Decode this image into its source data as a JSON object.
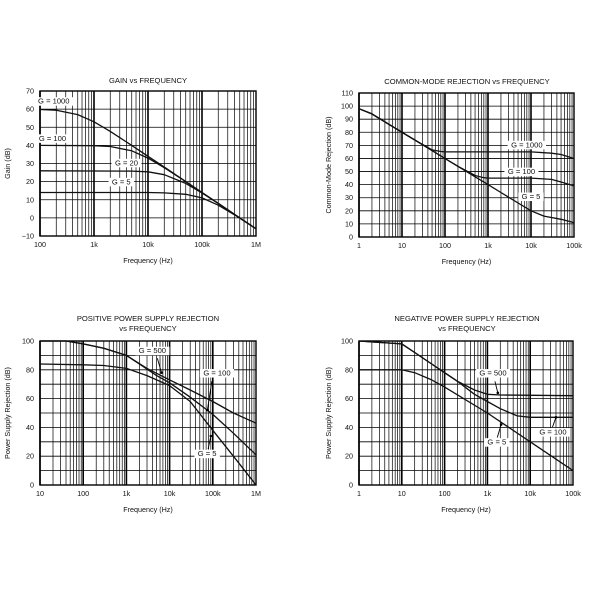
{
  "chart_data": [
    {
      "type": "line",
      "title": [
        "GAIN vs FREQUENCY"
      ],
      "xlabel": "Frequency (Hz)",
      "ylabel": "Gain (dB)",
      "xscale": "log",
      "xlim": [
        100,
        1000000
      ],
      "ylim": [
        -10,
        70
      ],
      "ystep": 10,
      "xticks": [
        100,
        1000,
        10000,
        100000,
        1000000
      ],
      "xtick_labels": [
        "100",
        "1k",
        "10k",
        "100k",
        "1M"
      ],
      "yticks": [
        -10,
        0,
        10,
        20,
        30,
        40,
        50,
        60,
        70
      ],
      "ytick_labels": [
        "−10",
        "0",
        "10",
        "20",
        "30",
        "40",
        "50",
        "60",
        "70"
      ],
      "grid": true,
      "series": [
        {
          "name": "G = 1000",
          "x": [
            100,
            200,
            500,
            1000,
            2000,
            5000,
            10000,
            20000,
            50000,
            100000,
            200000,
            500000,
            1000000
          ],
          "y": [
            59.8,
            59.4,
            57.0,
            53.0,
            47.7,
            40.0,
            34.0,
            28.0,
            20.0,
            14.0,
            8.0,
            0.0,
            -6.0
          ]
        },
        {
          "name": "G = 100",
          "x": [
            100,
            1000,
            2000,
            5000,
            10000,
            20000,
            50000,
            100000,
            200000,
            500000,
            1000000
          ],
          "y": [
            40,
            39.8,
            39.4,
            37.0,
            33.0,
            27.7,
            20.0,
            14.0,
            8.0,
            0.0,
            -6.0
          ]
        },
        {
          "name": "G = 20",
          "x": [
            100,
            5000,
            10000,
            20000,
            50000,
            100000,
            200000,
            500000,
            1000000
          ],
          "y": [
            26,
            25.8,
            25.4,
            23.8,
            19.0,
            13.7,
            8.0,
            0.0,
            -6.0
          ]
        },
        {
          "name": "G = 5",
          "x": [
            100,
            10000,
            20000,
            50000,
            100000,
            200000,
            500000,
            1000000
          ],
          "y": [
            14,
            14,
            13.8,
            13.0,
            11.0,
            7.0,
            0.0,
            -6.0
          ]
        }
      ]
    },
    {
      "type": "line",
      "title": [
        "COMMON-MODE REJECTION vs FREQUENCY"
      ],
      "xlabel": "Frequency (Hz)",
      "ylabel": "Common-Mode Rejection (dB)",
      "xscale": "log",
      "xlim": [
        1,
        100000
      ],
      "ylim": [
        0,
        110
      ],
      "ystep": 10,
      "xticks": [
        1,
        10,
        100,
        1000,
        10000,
        100000
      ],
      "xtick_labels": [
        "1",
        "10",
        "100",
        "1k",
        "10k",
        "100k"
      ],
      "yticks": [
        0,
        10,
        20,
        30,
        40,
        50,
        60,
        70,
        80,
        90,
        100,
        110
      ],
      "ytick_labels": [
        "0",
        "10",
        "20",
        "30",
        "40",
        "50",
        "60",
        "70",
        "80",
        "90",
        "100",
        "110"
      ],
      "grid": true,
      "series": [
        {
          "name": "G = 1000",
          "x": [
            1,
            2,
            5,
            10,
            20,
            50,
            80,
            100,
            1000,
            10000,
            30000,
            50000,
            100000
          ],
          "y": [
            98,
            94,
            86,
            80,
            74,
            66.5,
            65.3,
            65,
            65,
            65,
            64,
            63,
            60
          ]
        },
        {
          "name": "G = 100",
          "x": [
            1,
            2,
            5,
            10,
            20,
            50,
            100,
            200,
            500,
            800,
            1000,
            10000,
            30000,
            50000,
            100000
          ],
          "y": [
            98,
            94,
            86,
            80,
            74,
            66,
            60,
            54,
            47,
            45.3,
            45,
            45,
            44,
            42,
            39
          ]
        },
        {
          "name": "G = 5",
          "x": [
            1,
            2,
            5,
            10,
            20,
            50,
            100,
            200,
            500,
            1000,
            2000,
            5000,
            10000,
            20000,
            50000,
            100000
          ],
          "y": [
            98,
            94,
            86,
            80,
            74,
            66,
            60,
            54,
            46,
            40,
            34,
            26,
            20,
            16,
            13.5,
            11
          ]
        }
      ]
    },
    {
      "type": "line",
      "title": [
        "POSITIVE POWER SUPPLY REJECTION",
        "vs FREQUENCY"
      ],
      "xlabel": "Frequency (Hz)",
      "ylabel": "Power Supply Rejection (dB)",
      "xscale": "log",
      "xlim": [
        10,
        1000000
      ],
      "ylim": [
        0,
        100
      ],
      "ystep": 10,
      "xticks": [
        10,
        100,
        1000,
        10000,
        100000,
        1000000
      ],
      "xtick_labels": [
        "10",
        "100",
        "1k",
        "10k",
        "100k",
        "1M"
      ],
      "yticks": [
        0,
        20,
        40,
        60,
        80,
        100
      ],
      "ytick_labels": [
        "0",
        "20",
        "40",
        "60",
        "80",
        "100"
      ],
      "grid": true,
      "series": [
        {
          "name": "G = 500",
          "x": [
            10,
            40,
            100,
            300,
            1000,
            3000,
            10000,
            30000,
            100000,
            300000,
            1000000
          ],
          "y": [
            100,
            100,
            98,
            95,
            90,
            81,
            73,
            66,
            58,
            50,
            43
          ]
        },
        {
          "name": "G = 100",
          "x": [
            10,
            40,
            100,
            300,
            1000,
            2000,
            5000,
            10000,
            30000,
            100000,
            300000,
            1000000
          ],
          "y": [
            100,
            100,
            98,
            95,
            90,
            84,
            76,
            71,
            61,
            49,
            36,
            21
          ]
        },
        {
          "name": "G = 5",
          "x": [
            10,
            100,
            300,
            1000,
            3000,
            10000,
            30000,
            100000,
            300000,
            1000000
          ],
          "y": [
            84,
            83.5,
            83,
            81,
            76,
            69,
            58,
            38,
            20,
            0
          ]
        }
      ]
    },
    {
      "type": "line",
      "title": [
        "NEGATIVE POWER SUPPLY REJECTION",
        "vs FREQUENCY"
      ],
      "xlabel": "Frequency (Hz)",
      "ylabel": "Power Supply Rejection (dB)",
      "xscale": "log",
      "xlim": [
        1,
        100000
      ],
      "ylim": [
        0,
        100
      ],
      "ystep": 10,
      "xticks": [
        1,
        10,
        100,
        1000,
        10000,
        100000
      ],
      "xtick_labels": [
        "1",
        "10",
        "100",
        "1k",
        "10k",
        "100k"
      ],
      "yticks": [
        0,
        20,
        40,
        60,
        80,
        100
      ],
      "ytick_labels": [
        "0",
        "20",
        "40",
        "60",
        "80",
        "100"
      ],
      "grid": true,
      "series": [
        {
          "name": "G = 500",
          "x": [
            1,
            10,
            20,
            50,
            100,
            200,
            500,
            1000,
            2000,
            100000
          ],
          "y": [
            100,
            98,
            92,
            84,
            78,
            72,
            66,
            63,
            62.5,
            62
          ]
        },
        {
          "name": "G = 100",
          "x": [
            1,
            10,
            20,
            50,
            100,
            200,
            500,
            1000,
            2000,
            5000,
            10000,
            100000
          ],
          "y": [
            100,
            98,
            92,
            84,
            78,
            72,
            63,
            58,
            53,
            48,
            47,
            47
          ]
        },
        {
          "name": "G = 5",
          "x": [
            1,
            10,
            20,
            50,
            100,
            1000,
            10000,
            100000
          ],
          "y": [
            80,
            80,
            78,
            73,
            68,
            50,
            30,
            10
          ]
        }
      ]
    }
  ]
}
